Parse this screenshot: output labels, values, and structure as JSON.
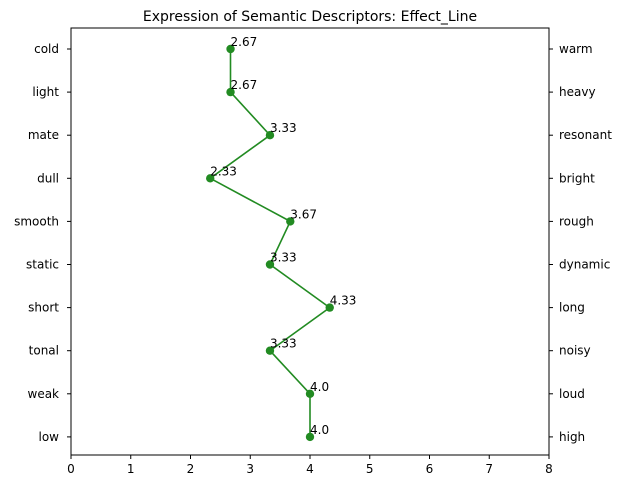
{
  "chart_data": {
    "type": "line",
    "title": "Expression of Semantic Descriptors: Effect_Line",
    "left_labels": [
      "cold",
      "light",
      "mate",
      "dull",
      "smooth",
      "static",
      "short",
      "tonal",
      "weak",
      "low"
    ],
    "right_labels": [
      "warm",
      "heavy",
      "resonant",
      "bright",
      "rough",
      "dynamic",
      "long",
      "noisy",
      "loud",
      "high"
    ],
    "values": [
      2.67,
      2.67,
      3.33,
      2.33,
      3.67,
      3.33,
      4.33,
      3.33,
      4.0,
      4.0
    ],
    "value_labels": [
      "2.67",
      "2.67",
      "3.33",
      "2.33",
      "3.67",
      "3.33",
      "4.33",
      "3.33",
      "4.0",
      "4.0"
    ],
    "xlim": [
      0,
      8
    ],
    "xticks": [
      0,
      1,
      2,
      3,
      4,
      5,
      6,
      7,
      8
    ],
    "grid": false,
    "line_color": "#228b22",
    "marker": "circle"
  }
}
